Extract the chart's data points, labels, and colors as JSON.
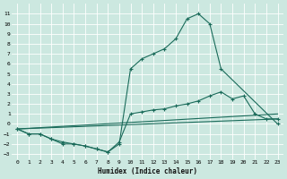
{
  "bg_color": "#cce8e0",
  "grid_color": "#ffffff",
  "line_color": "#1a6b5a",
  "xlabel": "Humidex (Indice chaleur)",
  "xlim": [
    -0.5,
    23.5
  ],
  "ylim": [
    -3.5,
    12.0
  ],
  "xticks": [
    0,
    1,
    2,
    3,
    4,
    5,
    6,
    7,
    8,
    9,
    10,
    11,
    12,
    13,
    14,
    15,
    16,
    17,
    18,
    19,
    20,
    21,
    22,
    23
  ],
  "yticks": [
    -3,
    -2,
    -1,
    0,
    1,
    2,
    3,
    4,
    5,
    6,
    7,
    8,
    9,
    10,
    11
  ],
  "curve1_x": [
    0,
    1,
    2,
    3,
    4,
    5,
    6,
    7,
    8,
    9,
    10,
    11,
    12,
    13,
    14,
    15,
    16,
    17,
    18,
    23
  ],
  "curve1_y": [
    -0.5,
    -1.0,
    -1.0,
    -1.5,
    -2.0,
    -2.0,
    -2.2,
    -2.5,
    -2.8,
    -2.0,
    5.5,
    6.5,
    7.0,
    7.5,
    8.5,
    10.5,
    11.0,
    10.0,
    5.5,
    0.0
  ],
  "curve2_x": [
    0,
    1,
    2,
    3,
    4,
    5,
    6,
    7,
    8,
    9,
    10,
    11,
    12,
    13,
    14,
    15,
    16,
    17,
    18,
    19,
    20,
    21,
    22,
    23
  ],
  "curve2_y": [
    -0.5,
    -1.0,
    -1.0,
    -1.5,
    -1.8,
    -2.0,
    -2.2,
    -2.5,
    -2.8,
    -1.8,
    1.0,
    1.2,
    1.4,
    1.5,
    1.8,
    2.0,
    2.3,
    2.8,
    3.2,
    2.5,
    2.8,
    1.0,
    0.5,
    0.5
  ],
  "curve3_x": [
    0,
    23
  ],
  "curve3_y": [
    -0.5,
    1.0
  ],
  "curve4_x": [
    0,
    23
  ],
  "curve4_y": [
    -0.5,
    0.5
  ]
}
